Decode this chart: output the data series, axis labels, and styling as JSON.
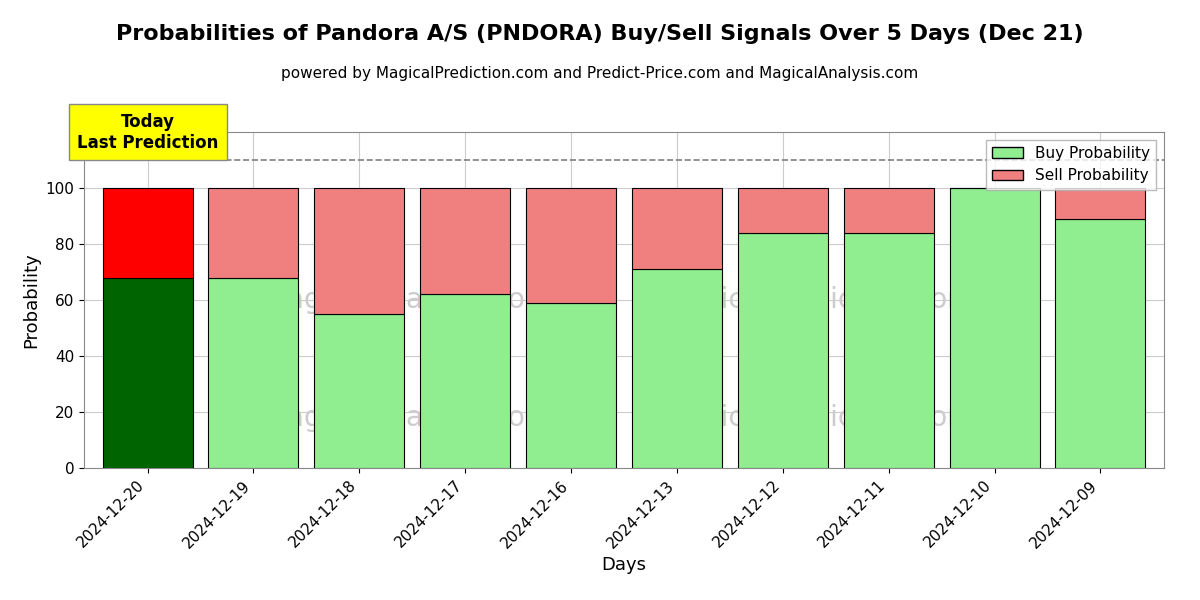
{
  "title": "Probabilities of Pandora A/S (PNDORA) Buy/Sell Signals Over 5 Days (Dec 21)",
  "subtitle": "powered by MagicalPrediction.com and Predict-Price.com and MagicalAnalysis.com",
  "xlabel": "Days",
  "ylabel": "Probability",
  "ylim": [
    0,
    120
  ],
  "yticks": [
    0,
    20,
    40,
    60,
    80,
    100
  ],
  "dashed_line_y": 110,
  "legend_labels": [
    "Buy Probability",
    "Sell Probability"
  ],
  "dates": [
    "2024-12-20",
    "2024-12-19",
    "2024-12-18",
    "2024-12-17",
    "2024-12-16",
    "2024-12-13",
    "2024-12-12",
    "2024-12-11",
    "2024-12-10",
    "2024-12-09"
  ],
  "buy_values": [
    68,
    68,
    55,
    62,
    59,
    71,
    84,
    84,
    100,
    89
  ],
  "sell_values": [
    32,
    32,
    45,
    38,
    41,
    29,
    16,
    16,
    0,
    11
  ],
  "today_bar_buy_color": "#006400",
  "today_bar_sell_color": "#FF0000",
  "other_bar_buy_color": "#90EE90",
  "other_bar_sell_color": "#F08080",
  "bar_edge_color": "#000000",
  "bar_width": 0.85,
  "annotation_text": "Today\nLast Prediction",
  "annotation_bg_color": "#FFFF00",
  "annotation_fontsize": 12,
  "title_fontsize": 16,
  "subtitle_fontsize": 11,
  "axis_label_fontsize": 13,
  "tick_fontsize": 11,
  "legend_fontsize": 11,
  "bg_color": "#ffffff",
  "grid_color": "#cccccc",
  "watermark_color": "#cccccc",
  "watermark_fontsize": 20
}
